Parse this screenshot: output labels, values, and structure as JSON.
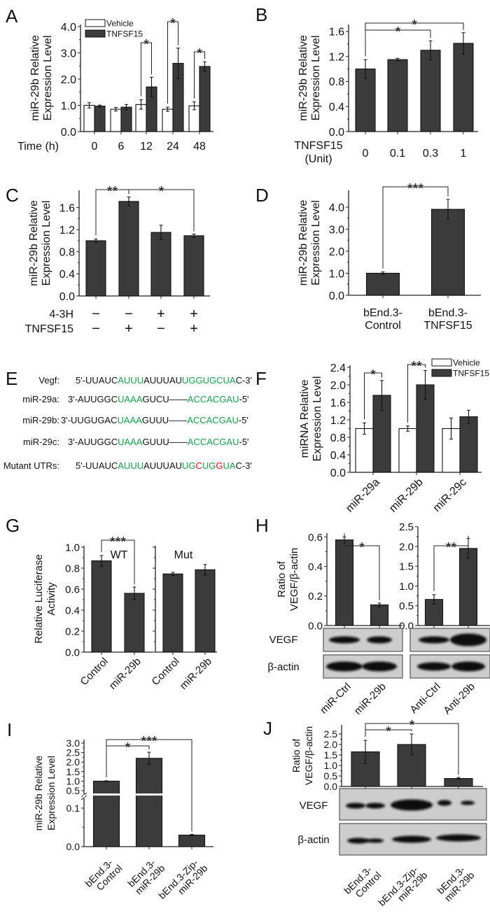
{
  "panel_letters": [
    "A",
    "B",
    "C",
    "D",
    "E",
    "F",
    "G",
    "H",
    "I",
    "J"
  ],
  "colors": {
    "bar": "#3b3b3b",
    "vehicle_bar": "#ffffff",
    "plain": "#111111",
    "match": "#1a9a4a",
    "mutation": "#e3141b"
  },
  "sequences": {
    "rows": [
      {
        "label": "Vegf:",
        "segments": [
          {
            "text": "5'-UUAUC",
            "color": "plain"
          },
          {
            "text": "AUUU",
            "color": "match"
          },
          {
            "text": "AUUUAU",
            "color": "plain"
          },
          {
            "text": "UGGUGCUA",
            "color": "match"
          },
          {
            "text": "C-3'",
            "color": "plain"
          }
        ]
      },
      {
        "label": "miR-29a:",
        "segments": [
          {
            "text": "3'-AUUGGC",
            "color": "plain"
          },
          {
            "text": "UAAA",
            "color": "match"
          },
          {
            "text": "GUCU——",
            "color": "plain"
          },
          {
            "text": "ACCACGAU",
            "color": "match"
          },
          {
            "text": "-5'",
            "color": "plain"
          }
        ]
      },
      {
        "label": "miR-29b:",
        "segments": [
          {
            "text": "3'-UUGUGAC",
            "color": "plain"
          },
          {
            "text": "UAAA",
            "color": "match"
          },
          {
            "text": "GUUU——",
            "color": "plain"
          },
          {
            "text": "ACCACGAU",
            "color": "match"
          },
          {
            "text": "-5'",
            "color": "plain"
          }
        ]
      },
      {
        "label": "miR-29c:",
        "segments": [
          {
            "text": "3'-AUUGGC",
            "color": "plain"
          },
          {
            "text": "UAAA",
            "color": "match"
          },
          {
            "text": "GUUU——",
            "color": "plain"
          },
          {
            "text": "ACCACGAU",
            "color": "match"
          },
          {
            "text": "-5'",
            "color": "plain"
          }
        ]
      },
      {
        "label": "Mutant UTRs:",
        "segments": [
          {
            "text": "5'-UUAUC",
            "color": "plain"
          },
          {
            "text": "AUUU",
            "color": "match"
          },
          {
            "text": "AUUUAU",
            "color": "plain"
          },
          {
            "text": "UG",
            "color": "match"
          },
          {
            "text": "C",
            "color": "mutation"
          },
          {
            "text": "UG",
            "color": "match"
          },
          {
            "text": "G",
            "color": "mutation"
          },
          {
            "text": "UA",
            "color": "match"
          },
          {
            "text": "C-3'",
            "color": "plain"
          }
        ]
      }
    ]
  },
  "chart_data": [
    {
      "panel": "A",
      "type": "bar",
      "ylabel": [
        "miR-29b Relative",
        "Expression Level"
      ],
      "xlabel": "Time (h)",
      "categories": [
        "0",
        "6",
        "12",
        "24",
        "48"
      ],
      "ylim": [
        0,
        4
      ],
      "yticks": [
        "0.0",
        "1.0",
        "2.0",
        "3.0",
        "4.0"
      ],
      "legend": "top-left",
      "series": [
        {
          "name": "Vehicle",
          "values": [
            1.0,
            0.85,
            1.03,
            0.85,
            0.98
          ],
          "errors": [
            0.1,
            0.07,
            0.18,
            0.08,
            0.15
          ]
        },
        {
          "name": "TNFSF15",
          "values": [
            0.97,
            0.93,
            1.7,
            2.6,
            2.48
          ],
          "errors": [
            0.04,
            0.1,
            0.37,
            0.58,
            0.18
          ]
        }
      ],
      "significance": [
        {
          "category": 2,
          "label": "*"
        },
        {
          "category": 3,
          "label": "*"
        },
        {
          "category": 4,
          "label": "*"
        }
      ]
    },
    {
      "panel": "B",
      "type": "bar",
      "ylabel": [
        "miR-29b Relative",
        "Expression Level"
      ],
      "xlabel": [
        "TNFSF15",
        "(Unit)"
      ],
      "categories": [
        "0",
        "0.1",
        "0.3",
        "1"
      ],
      "ylim": [
        0,
        1.7
      ],
      "yticks": [
        "0.0",
        "0.4",
        "0.8",
        "1.2",
        "1.6"
      ],
      "series": [
        {
          "values": [
            1.0,
            1.15,
            1.3,
            1.41
          ],
          "errors": [
            0.15,
            0.02,
            0.15,
            0.17
          ]
        }
      ],
      "significance": [
        {
          "between": [
            0,
            2
          ],
          "label": "*"
        },
        {
          "between": [
            0,
            3
          ],
          "label": "*"
        }
      ]
    },
    {
      "panel": "C",
      "type": "bar",
      "ylabel": [
        "miR-29b Relative",
        "Expression Level"
      ],
      "conditions": [
        {
          "label": "4-3H",
          "values": [
            "−",
            "−",
            "+",
            "+"
          ]
        },
        {
          "label": "TNFSF15",
          "values": [
            "−",
            "+",
            "−",
            "+"
          ]
        }
      ],
      "ylim": [
        0,
        1.9
      ],
      "yticks": [
        "0.0",
        "0.4",
        "0.8",
        "1.2",
        "1.6"
      ],
      "series": [
        {
          "values": [
            1.0,
            1.71,
            1.15,
            1.09
          ],
          "errors": [
            0.03,
            0.08,
            0.13,
            0.03
          ]
        }
      ],
      "significance": [
        {
          "between": [
            0,
            1
          ],
          "label": "**"
        },
        {
          "between": [
            1,
            3
          ],
          "label": "*"
        }
      ]
    },
    {
      "panel": "D",
      "type": "bar",
      "ylabel": [
        "miR-29b Relative",
        "Expression Level"
      ],
      "categories": [
        [
          "bEnd.3-",
          "Control"
        ],
        [
          "bEnd.3-",
          "TNFSF15"
        ]
      ],
      "ylim": [
        0,
        4.7
      ],
      "yticks": [
        "0.0",
        "1.0",
        "2.0",
        "3.0",
        "4.0"
      ],
      "series": [
        {
          "values": [
            1.0,
            3.9
          ],
          "errors": [
            0.06,
            0.45
          ]
        }
      ],
      "significance": [
        {
          "between": [
            0,
            1
          ],
          "label": "***"
        }
      ]
    },
    {
      "panel": "F",
      "type": "bar",
      "ylabel": [
        "miRNA Relative",
        "Expression Level"
      ],
      "categories": [
        "miR-29a",
        "miR-29b",
        "miR-29c"
      ],
      "ylim": [
        0,
        2.4
      ],
      "yticks": [
        "0.0",
        "0.4",
        "0.8",
        "1.2",
        "1.6",
        "2.0",
        "2.4"
      ],
      "legend": "top-right",
      "series": [
        {
          "name": "Vehicle",
          "values": [
            1.0,
            1.0,
            1.0
          ],
          "errors": [
            0.13,
            0.06,
            0.24
          ]
        },
        {
          "name": "TNFSF15",
          "values": [
            1.76,
            2.0,
            1.27
          ],
          "errors": [
            0.34,
            0.33,
            0.15
          ]
        }
      ],
      "significance": [
        {
          "category": 0,
          "label": "*"
        },
        {
          "category": 1,
          "label": "**"
        }
      ]
    },
    {
      "panel": "G",
      "type": "bar",
      "subtitle": "WT",
      "ylabel": [
        "Relative Luciferase",
        "Activity"
      ],
      "categories": [
        "Control",
        "miR-29b"
      ],
      "ylim": [
        0,
        1.0
      ],
      "yticks": [
        "0.0",
        "0.2",
        "0.4",
        "0.6",
        "0.8",
        "1.0"
      ],
      "series": [
        {
          "values": [
            0.87,
            0.56
          ],
          "errors": [
            0.05,
            0.06
          ]
        }
      ],
      "significance": [
        {
          "between": [
            0,
            1
          ],
          "label": "***"
        }
      ]
    },
    {
      "panel": "G",
      "type": "bar",
      "subtitle": "Mut",
      "categories": [
        "Control",
        "miR-29b"
      ],
      "ylim": [
        0,
        1.0
      ],
      "series": [
        {
          "values": [
            0.745,
            0.785
          ],
          "errors": [
            0.015,
            0.05
          ]
        }
      ]
    },
    {
      "panel": "H",
      "type": "bar",
      "ylabel": [
        "Ratio of",
        "VEGF/β-actin"
      ],
      "blot_rows": [
        "VEGF",
        "β-actin"
      ],
      "categories": [
        "miR-Ctrl",
        "miR-29b"
      ],
      "ylim": [
        0,
        0.62
      ],
      "yticks": [
        "0.0",
        "0.2",
        "0.4",
        "0.6"
      ],
      "series": [
        {
          "values": [
            0.58,
            0.14
          ],
          "errors": [
            0.02,
            0.012
          ]
        }
      ],
      "significance": [
        {
          "between": [
            0,
            1
          ],
          "label": "*"
        }
      ]
    },
    {
      "panel": "H",
      "type": "bar",
      "categories": [
        "Anti-Ctrl",
        "Anti-29b"
      ],
      "ylim": [
        0,
        2.5
      ],
      "yticks": [
        "0.0",
        "0.5",
        "1.0",
        "1.5",
        "2.0",
        "2.5"
      ],
      "series": [
        {
          "values": [
            0.66,
            1.95
          ],
          "errors": [
            0.12,
            0.25
          ]
        }
      ],
      "significance": [
        {
          "between": [
            0,
            1
          ],
          "label": "**"
        }
      ]
    },
    {
      "panel": "I",
      "type": "bar",
      "ylabel": [
        "miR-29b Relative",
        "Expression Level"
      ],
      "axis_break": true,
      "categories": [
        [
          "bEnd.3-",
          "Control"
        ],
        [
          "bEnd.3-",
          "miR-29b"
        ],
        [
          "bEnd.3-Zip-",
          "miR-29b"
        ]
      ],
      "ylim": [
        0,
        3.0
      ],
      "yticks": [
        "0.0",
        "0.1",
        "0.5",
        "1.0",
        "1.5",
        "2.0",
        "2.5",
        "3.0"
      ],
      "series": [
        {
          "values": [
            1.0,
            2.2,
            0.03
          ],
          "errors": [
            0.02,
            0.32,
            0.002
          ]
        }
      ],
      "significance": [
        {
          "between": [
            0,
            1
          ],
          "label": "*"
        },
        {
          "between": [
            0,
            2
          ],
          "label": "***"
        }
      ]
    },
    {
      "panel": "J",
      "type": "bar",
      "ylabel": [
        "Ratio of",
        "VEGF/β-actin"
      ],
      "blot_rows": [
        "VEGF",
        "β-actin"
      ],
      "categories": [
        [
          "bEnd.3-",
          "Control"
        ],
        [
          "bEnd.3-Zip-",
          "miR-29b"
        ],
        [
          "bEnd.3-",
          "miR-29b"
        ]
      ],
      "ylim": [
        0,
        2.8
      ],
      "yticks": [
        "0.0",
        "0.5",
        "1.0",
        "1.5",
        "2.0",
        "2.5"
      ],
      "series": [
        {
          "values": [
            1.65,
            2.0,
            0.38
          ],
          "errors": [
            0.55,
            0.5,
            0.05
          ]
        }
      ],
      "significance": [
        {
          "between": [
            0,
            1
          ],
          "label": "*"
        },
        {
          "between": [
            0,
            2
          ],
          "label": "*"
        }
      ]
    }
  ]
}
